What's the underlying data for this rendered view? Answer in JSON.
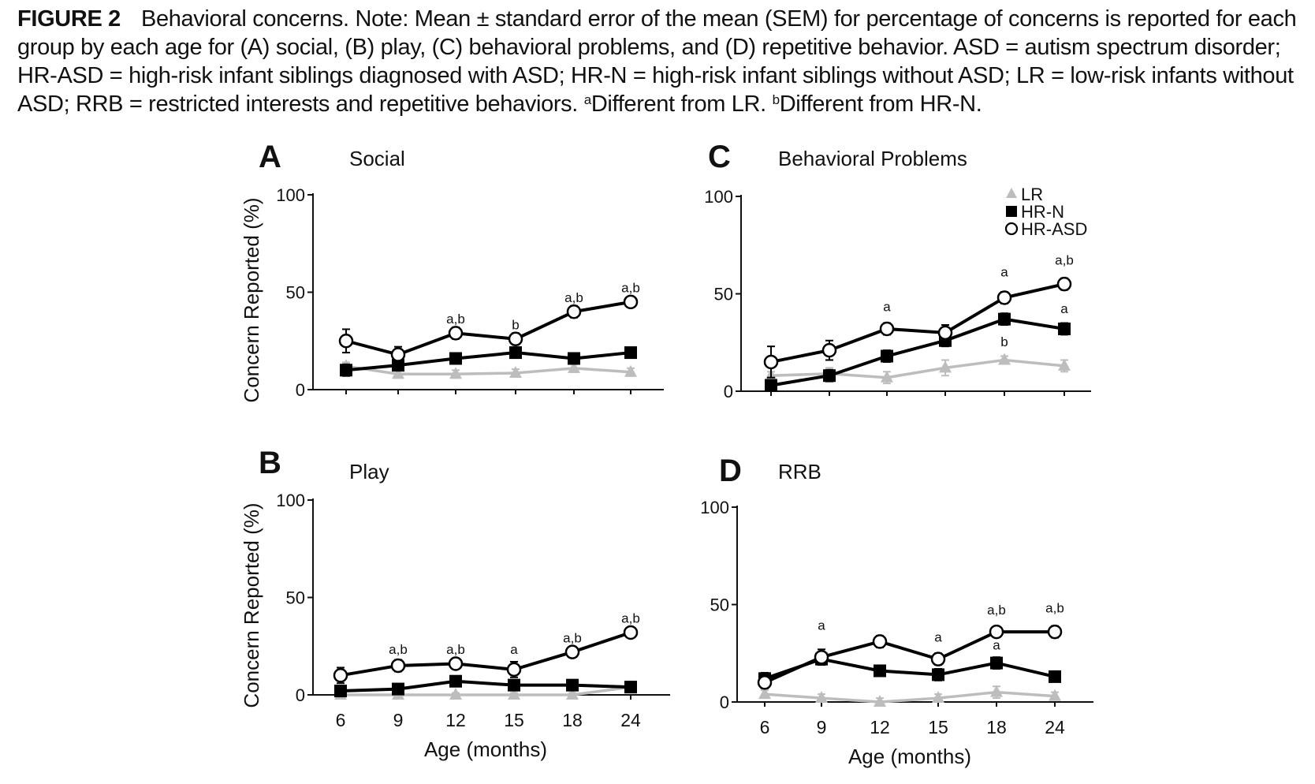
{
  "caption": {
    "label": "FIGURE 2",
    "text_main": "Behavioral concerns. Note: Mean ± standard error of the mean (SEM) for percentage of concerns is reported for each group by each age for (A) social, (B) play, (C) behavioral problems, and (D) repetitive behavior. ASD = autism spectrum disorder; HR-ASD = high-risk infant siblings diagnosed with ASD; HR-N = high-risk infant siblings without ASD; LR = low-risk infants without ASD; RRB = restricted interests and repetitive behaviors.",
    "sup_a": "a",
    "note_a": "Different from LR.",
    "sup_b": "b",
    "note_b": "Different from HR-N."
  },
  "colors": {
    "LR": "#bdbdbd",
    "HR-N": "#000000",
    "HR-ASD": "#000000"
  },
  "legend": [
    {
      "name": "LR",
      "marker": "triangle",
      "color": "#bdbdbd"
    },
    {
      "name": "HR-N",
      "marker": "filled-square",
      "color": "#000000"
    },
    {
      "name": "HR-ASD",
      "marker": "open-circle",
      "color": "#000000"
    }
  ],
  "chart_data": [
    {
      "panel": "A",
      "title": "Social",
      "type": "line",
      "ylabel": "Concern Reported (%)",
      "xlabel": "",
      "ylim": [
        0,
        100
      ],
      "yticks": [
        0,
        50,
        100
      ],
      "x": [
        6,
        9,
        12,
        15,
        18,
        24
      ],
      "series": [
        {
          "name": "LR",
          "values": [
            12,
            8,
            8,
            8.5,
            11,
            9
          ],
          "sem": [
            2,
            2,
            2,
            2,
            2,
            2
          ]
        },
        {
          "name": "HR-N",
          "values": [
            10,
            12.5,
            16,
            19,
            16,
            19
          ],
          "sem": [
            3,
            2,
            2,
            2,
            2,
            2
          ]
        },
        {
          "name": "HR-ASD",
          "values": [
            25,
            18,
            29,
            26,
            40,
            45
          ],
          "sem": [
            6,
            4,
            3,
            3,
            3,
            2
          ]
        }
      ],
      "annotations": [
        {
          "x": 12,
          "y": 34,
          "text": "a,b"
        },
        {
          "x": 15,
          "y": 31,
          "text": "b"
        },
        {
          "x": 18,
          "y": 45,
          "text": "a,b"
        },
        {
          "x": 24,
          "y": 50,
          "text": "a,b"
        }
      ]
    },
    {
      "panel": "B",
      "title": "Play",
      "type": "line",
      "ylabel": "Concern Reported (%)",
      "xlabel": "Age (months)",
      "ylim": [
        0,
        100
      ],
      "yticks": [
        0,
        50,
        100
      ],
      "x": [
        6,
        9,
        12,
        15,
        18,
        24
      ],
      "series": [
        {
          "name": "LR",
          "values": [
            0,
            0,
            0,
            0,
            0,
            4
          ],
          "sem": [
            1,
            1,
            1,
            1,
            1,
            1
          ]
        },
        {
          "name": "HR-N",
          "values": [
            2,
            3,
            7,
            5,
            5,
            4
          ],
          "sem": [
            1,
            1,
            2,
            2,
            2,
            1
          ]
        },
        {
          "name": "HR-ASD",
          "values": [
            10,
            15,
            16,
            13,
            22,
            32
          ],
          "sem": [
            4,
            3,
            2,
            4,
            2,
            2
          ]
        }
      ],
      "annotations": [
        {
          "x": 9,
          "y": 21,
          "text": "a,b"
        },
        {
          "x": 12,
          "y": 21,
          "text": "a,b"
        },
        {
          "x": 15,
          "y": 21,
          "text": "a"
        },
        {
          "x": 18,
          "y": 27,
          "text": "a,b"
        },
        {
          "x": 24,
          "y": 37,
          "text": "a,b"
        }
      ]
    },
    {
      "panel": "C",
      "title": "Behavioral Problems",
      "type": "line",
      "ylabel": "",
      "xlabel": "",
      "ylim": [
        0,
        100
      ],
      "yticks": [
        0,
        50,
        100
      ],
      "x": [
        6,
        9,
        12,
        15,
        18,
        24
      ],
      "series": [
        {
          "name": "LR",
          "values": [
            8,
            9,
            7,
            12,
            16,
            13
          ],
          "sem": [
            2,
            3,
            3,
            4,
            2,
            3
          ]
        },
        {
          "name": "HR-N",
          "values": [
            3,
            8,
            18,
            26,
            37,
            32
          ],
          "sem": [
            1,
            3,
            3,
            3,
            3,
            3
          ]
        },
        {
          "name": "HR-ASD",
          "values": [
            15,
            21,
            32,
            30,
            48,
            55
          ],
          "sem": [
            8,
            5,
            3,
            4,
            3,
            3
          ]
        }
      ],
      "annotations": [
        {
          "x": 12,
          "y": 41,
          "text": "a"
        },
        {
          "x": 18,
          "y": 59,
          "text": "a"
        },
        {
          "x": 18,
          "y": 23,
          "text": "b"
        },
        {
          "x": 24,
          "y": 65,
          "text": "a,b"
        },
        {
          "x": 24,
          "y": 40,
          "text": "a"
        }
      ]
    },
    {
      "panel": "D",
      "title": "RRB",
      "type": "line",
      "ylabel": "",
      "xlabel": "Age (months)",
      "ylim": [
        0,
        100
      ],
      "yticks": [
        0,
        50,
        100
      ],
      "x": [
        6,
        9,
        12,
        15,
        18,
        24
      ],
      "series": [
        {
          "name": "LR",
          "values": [
            4,
            2,
            0,
            2,
            5,
            3
          ],
          "sem": [
            2,
            2,
            2,
            2,
            3,
            2
          ]
        },
        {
          "name": "HR-N",
          "values": [
            12,
            22,
            16,
            14,
            20,
            13
          ],
          "sem": [
            3,
            2,
            2,
            3,
            3,
            2
          ]
        },
        {
          "name": "HR-ASD",
          "values": [
            10,
            23,
            31,
            22,
            36,
            36
          ],
          "sem": [
            3,
            4,
            3,
            3,
            2,
            3
          ]
        }
      ],
      "annotations": [
        {
          "x": 9,
          "y": 37,
          "text": "a"
        },
        {
          "x": 15,
          "y": 31,
          "text": "a"
        },
        {
          "x": 18,
          "y": 45,
          "text": "a,b"
        },
        {
          "x": 18,
          "y": 27,
          "text": "a"
        },
        {
          "x": 24,
          "y": 46,
          "text": "a,b"
        }
      ]
    }
  ]
}
